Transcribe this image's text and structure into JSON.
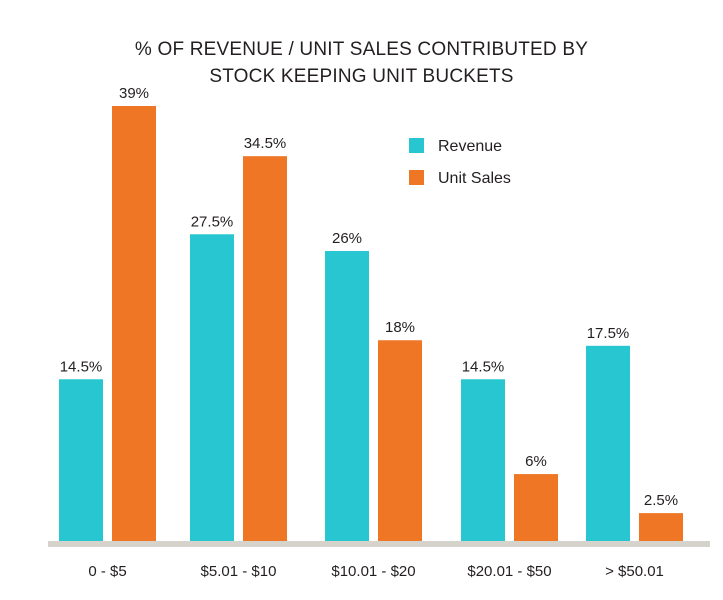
{
  "chart_data": {
    "type": "bar",
    "title": "% OF REVENUE / UNIT SALES CONTRIBUTED BY STOCK KEEPING UNIT BUCKETS",
    "title_lines": [
      "% OF REVENUE / UNIT SALES CONTRIBUTED BY",
      "STOCK KEEPING UNIT BUCKETS"
    ],
    "categories": [
      "0 - $5",
      "$5.01 - $10",
      "$10.01 - $20",
      "$20.01 - $50",
      "> $50.01"
    ],
    "series": [
      {
        "name": "Revenue",
        "color": "#27c6d1",
        "values": [
          14.5,
          27.5,
          26,
          14.5,
          17.5
        ],
        "labels": [
          "14.5%",
          "27.5%",
          "26%",
          "14.5%",
          "17.5%"
        ]
      },
      {
        "name": "Unit Sales",
        "color": "#ee7625",
        "values": [
          39,
          34.5,
          18,
          6,
          2.5
        ],
        "labels": [
          "39%",
          "34.5%",
          "18%",
          "6%",
          "2.5%"
        ]
      }
    ],
    "xlabel": "",
    "ylabel": "",
    "ylim": [
      0,
      40
    ],
    "grid": false,
    "legend": "top-right",
    "axis_color": "#d6d2cc"
  }
}
